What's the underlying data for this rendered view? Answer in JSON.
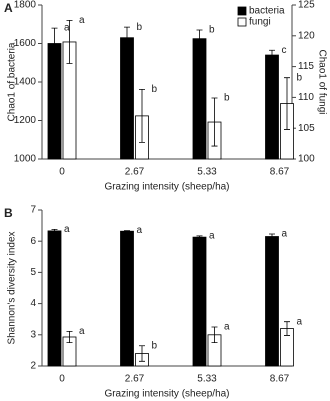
{
  "chart_data": [
    {
      "type": "bar",
      "panel": "A",
      "x_label": "Grazing intensity (sheep/ha)",
      "y_label": "Chao1 of bacteria",
      "y2_label": "Chao1 of fungi",
      "categories": [
        "0",
        "2.67",
        "5.33",
        "8.67"
      ],
      "ylim": [
        1000,
        1800
      ],
      "yticks": [
        1000,
        1200,
        1400,
        1600,
        1800
      ],
      "y2lim": [
        100,
        125
      ],
      "y2ticks": [
        100,
        105,
        110,
        115,
        120,
        125
      ],
      "legend": "top-right",
      "series": [
        {
          "name": "bacteria",
          "color": "#000000",
          "values": [
            1600,
            1630,
            1625,
            1540
          ],
          "errors": [
            80,
            55,
            45,
            25
          ],
          "letters": [
            "a",
            "b",
            "b",
            "c"
          ]
        },
        {
          "name": "fungi",
          "color": "#ffffff",
          "axis": "y2",
          "values": [
            119,
            107,
            106,
            109
          ],
          "errors": [
            3.5,
            4.3,
            3.9,
            4.2
          ],
          "letters": [
            "a",
            "b",
            "b",
            "b"
          ]
        }
      ]
    },
    {
      "type": "bar",
      "panel": "B",
      "x_label": "Grazing intensity (sheep/ha)",
      "y_label": "Shannon's diversity index",
      "categories": [
        "0",
        "2.67",
        "5.33",
        "8.67"
      ],
      "ylim": [
        2,
        7
      ],
      "yticks": [
        2,
        3,
        4,
        5,
        6,
        7
      ],
      "series": [
        {
          "name": "bacteria",
          "color": "#000000",
          "values": [
            6.33,
            6.32,
            6.13,
            6.15
          ],
          "errors": [
            0.05,
            0.02,
            0.04,
            0.08
          ],
          "letters": [
            "a",
            "a",
            "a",
            "a"
          ]
        },
        {
          "name": "fungi",
          "color": "#ffffff",
          "values": [
            2.93,
            2.4,
            3.0,
            3.2
          ],
          "errors": [
            0.18,
            0.25,
            0.25,
            0.22
          ],
          "letters": [
            "a",
            "b",
            "a",
            "a"
          ]
        }
      ]
    }
  ]
}
